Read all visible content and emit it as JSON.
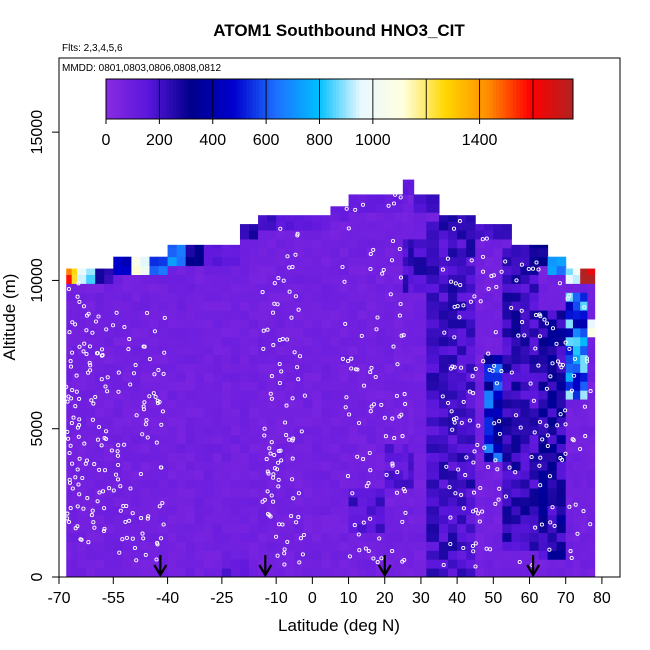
{
  "chart_data": {
    "type": "heatmap",
    "title": "ATOM1 Southbound HNO3_CIT",
    "flights_label": "Flts: 2,3,4,5,6",
    "dates_label": "MMDD: 0801,0803,0806,0808,0812",
    "xlabel": "Latitude (deg N)",
    "ylabel": "Altitude (m)",
    "xlim": [
      -70,
      85
    ],
    "ylim": [
      0,
      17500
    ],
    "x_ticks": [
      -70,
      -55,
      -40,
      -25,
      -10,
      0,
      10,
      20,
      30,
      40,
      50,
      60,
      70,
      80
    ],
    "y_ticks": [
      0,
      5000,
      10000,
      15000
    ],
    "colorbar": {
      "range": [
        0,
        1750
      ],
      "tick_values": [
        0,
        200,
        400,
        600,
        800,
        1000,
        1400
      ],
      "line_values": [
        200,
        400,
        600,
        800,
        1000,
        1200,
        1400,
        1600
      ],
      "stops": [
        "#8a2be2",
        "#5a16dc",
        "#00008b",
        "#0000cd",
        "#1e6fff",
        "#00bfff",
        "#e8f8ff",
        "#ffffe0",
        "#ffd700",
        "#ff8c00",
        "#ff0000",
        "#b22222"
      ]
    },
    "background_value": 80,
    "columns": [
      {
        "lat": [
          -68,
          -65
        ],
        "top": 10400,
        "cap": 1450
      },
      {
        "lat": [
          -65,
          -60
        ],
        "top": 10400,
        "cap": 900
      },
      {
        "lat": [
          -60,
          -55
        ],
        "top": 10400,
        "cap": 250
      },
      {
        "lat": [
          -55,
          -50
        ],
        "top": 10800,
        "cap": 450
      },
      {
        "lat": [
          -50,
          -45
        ],
        "top": 10800,
        "cap": 1100
      },
      {
        "lat": [
          -45,
          -40
        ],
        "top": 10800,
        "cap": 600
      },
      {
        "lat": [
          -40,
          -35
        ],
        "top": 11200,
        "cap": 700
      },
      {
        "lat": [
          -35,
          -30
        ],
        "top": 11200,
        "cap": 300
      },
      {
        "lat": [
          -30,
          -25
        ],
        "top": 11200,
        "cap": 150
      },
      {
        "lat": [
          -25,
          -20
        ],
        "top": 11200,
        "cap": 130
      },
      {
        "lat": [
          -20,
          -15
        ],
        "top": 11900,
        "cap": 250
      },
      {
        "lat": [
          -15,
          -10
        ],
        "top": 12200,
        "cap": 200
      },
      {
        "lat": [
          -10,
          -5
        ],
        "top": 12200,
        "cap": 150
      },
      {
        "lat": [
          -5,
          0
        ],
        "top": 12200,
        "cap": 130
      },
      {
        "lat": [
          0,
          5
        ],
        "top": 12200,
        "cap": 120
      },
      {
        "lat": [
          5,
          10
        ],
        "top": 12500,
        "cap": 110
      },
      {
        "lat": [
          10,
          15
        ],
        "top": 12900,
        "cap": 110
      },
      {
        "lat": [
          15,
          20
        ],
        "top": 12900,
        "cap": 120
      },
      {
        "lat": [
          20,
          25
        ],
        "top": 12900,
        "cap": 120
      },
      {
        "lat": [
          25,
          28
        ],
        "top": 13400,
        "cap": 150
      },
      {
        "lat": [
          28,
          35
        ],
        "top": 12900,
        "cap": 200
      },
      {
        "lat": [
          35,
          40
        ],
        "top": 12200,
        "cap": 250
      },
      {
        "lat": [
          40,
          45
        ],
        "top": 12200,
        "cap": 230
      },
      {
        "lat": [
          45,
          50
        ],
        "top": 11900,
        "cap": 200
      },
      {
        "lat": [
          50,
          55
        ],
        "top": 11900,
        "cap": 220
      },
      {
        "lat": [
          55,
          60
        ],
        "top": 11200,
        "cap": 230
      },
      {
        "lat": [
          60,
          65
        ],
        "top": 11200,
        "cap": 300
      },
      {
        "lat": [
          65,
          70
        ],
        "top": 10800,
        "cap": 650
      },
      {
        "lat": [
          70,
          74
        ],
        "top": 10400,
        "cap": 1000
      },
      {
        "lat": [
          74,
          78
        ],
        "top": 10400,
        "cap": 1700
      }
    ],
    "dark_regions": [
      {
        "lat": [
          32,
          46
        ],
        "alt": [
          0,
          12000
        ],
        "value": 200
      },
      {
        "lat": [
          47,
          52
        ],
        "alt": [
          4000,
          7500
        ],
        "value": 500
      },
      {
        "lat": [
          52,
          62
        ],
        "alt": [
          1000,
          11000
        ],
        "value": 220
      },
      {
        "lat": [
          62,
          70
        ],
        "alt": [
          500,
          9000
        ],
        "value": 260
      },
      {
        "lat": [
          70,
          76
        ],
        "alt": [
          6000,
          9500
        ],
        "value": 650
      },
      {
        "lat": [
          74,
          78
        ],
        "alt": [
          8000,
          8800
        ],
        "value": 800
      },
      {
        "lat": [
          10,
          20
        ],
        "alt": [
          1500,
          3000
        ],
        "value": 180
      },
      {
        "lat": [
          20,
          28
        ],
        "alt": [
          3000,
          4500
        ],
        "value": 150
      },
      {
        "lat": [
          -25,
          -18
        ],
        "alt": [
          0,
          700
        ],
        "value": 140
      },
      {
        "lat": [
          25,
          40
        ],
        "alt": [
          9500,
          11500
        ],
        "value": 200
      }
    ],
    "flight_profiles": [
      {
        "lat_start": -68,
        "lat_end": -58,
        "alt_low": 1000,
        "alt_high": 10000
      },
      {
        "lat_start": -58,
        "lat_end": -40,
        "alt_low": 500,
        "alt_high": 9000
      },
      {
        "lat_start": -14,
        "lat_end": -2,
        "alt_low": 300,
        "alt_high": 12000
      },
      {
        "lat_start": 8,
        "lat_end": 26,
        "alt_low": 200,
        "alt_high": 13000
      },
      {
        "lat_start": 36,
        "lat_end": 52,
        "alt_low": 200,
        "alt_high": 12000
      },
      {
        "lat_start": 52,
        "lat_end": 77,
        "alt_low": 200,
        "alt_high": 11000
      }
    ],
    "arrow_latitudes": [
      -42,
      -13,
      20,
      61
    ]
  }
}
